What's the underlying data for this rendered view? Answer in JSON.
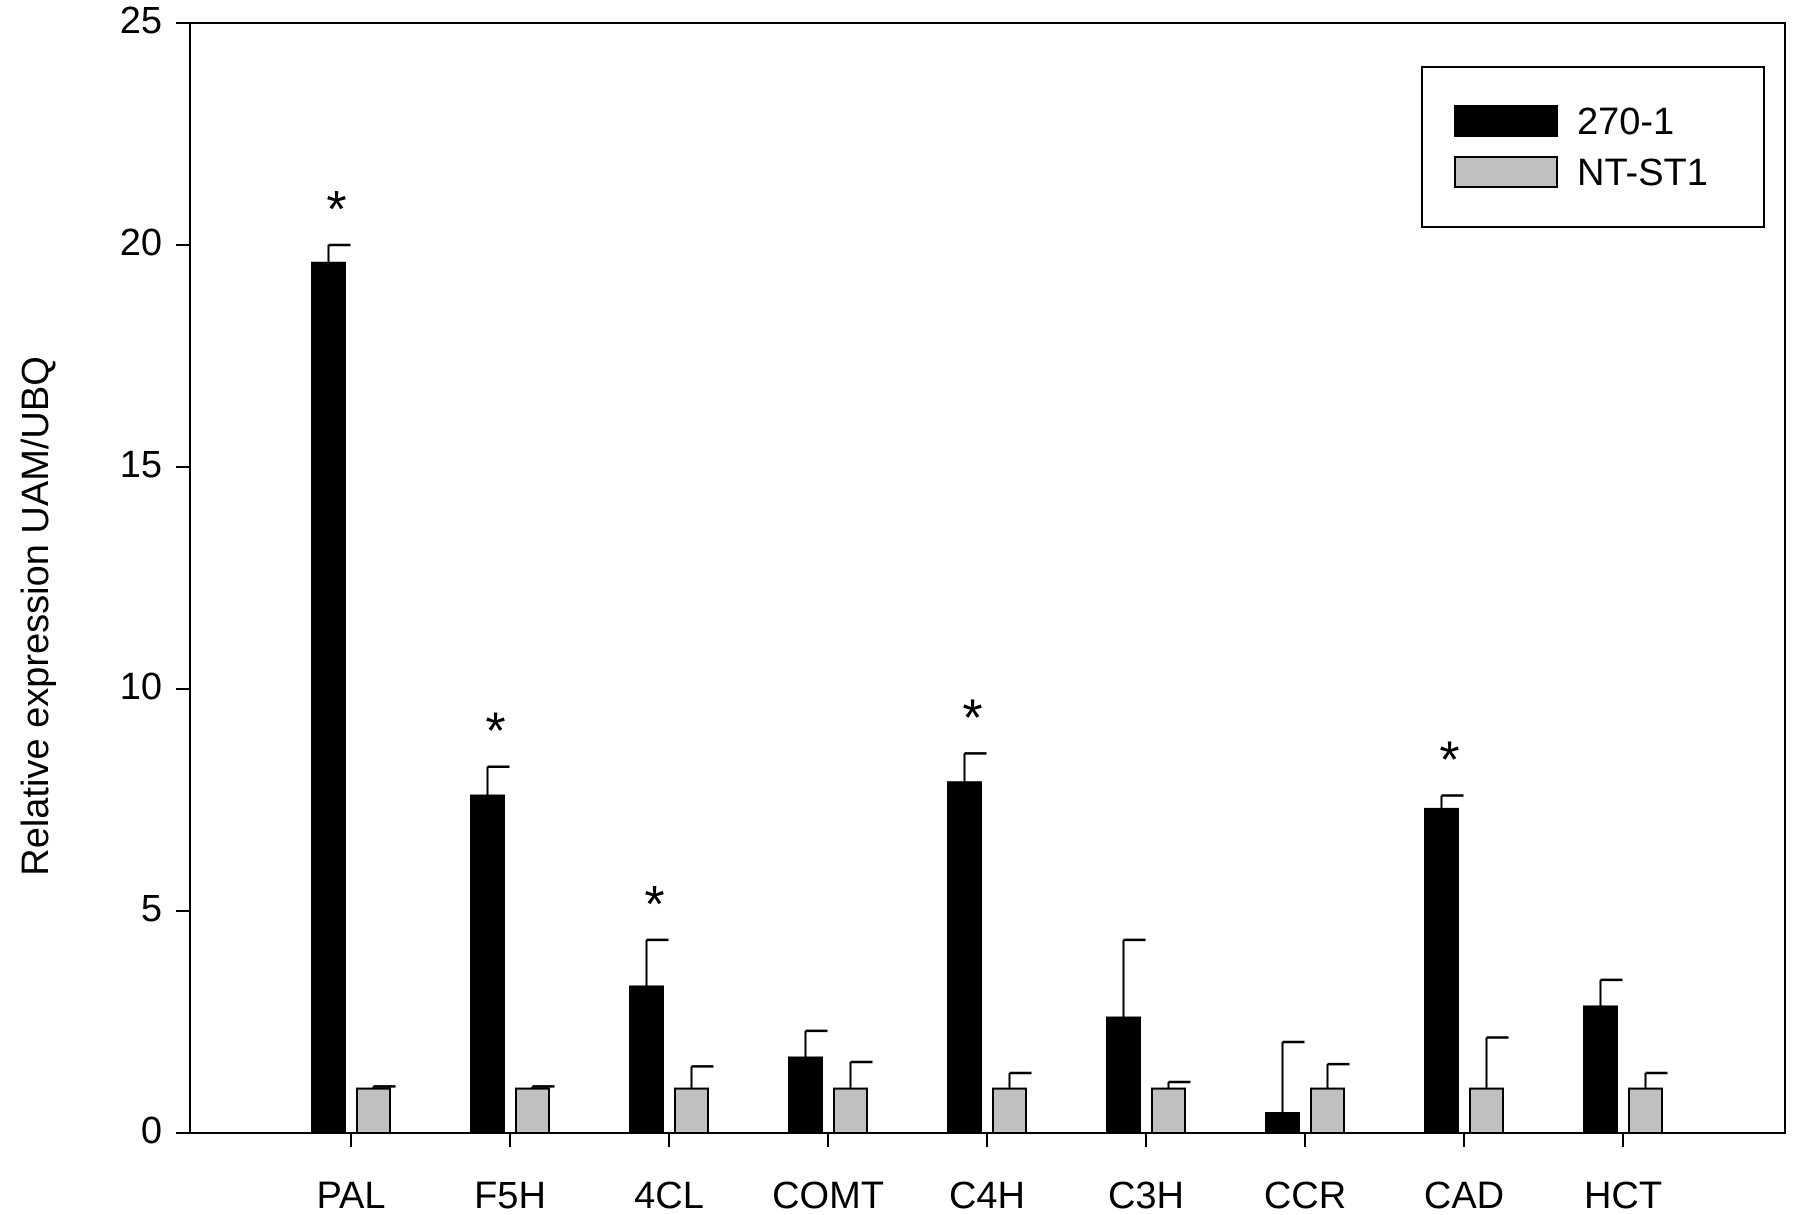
{
  "chart_data": {
    "type": "bar",
    "title": "",
    "xlabel": "",
    "ylabel": "Relative expression UAM/UBQ",
    "ylim": [
      0,
      25
    ],
    "yticks": [
      "0",
      "5",
      "10",
      "15",
      "20",
      "25"
    ],
    "grid": false,
    "legend_position": "top-right",
    "categories": [
      "PAL",
      "F5H",
      "4CL",
      "COMT",
      "C4H",
      "C3H",
      "CCR",
      "CAD",
      "HCT"
    ],
    "series": [
      {
        "name": "270-1",
        "color": "#000000",
        "values": [
          19.6,
          7.6,
          3.3,
          1.7,
          7.9,
          2.6,
          0.45,
          7.3,
          2.85
        ],
        "error": [
          0.4,
          0.65,
          1.05,
          0.6,
          0.65,
          1.75,
          1.6,
          0.3,
          0.6
        ]
      },
      {
        "name": "NT-ST1",
        "color": "#c0c0c0",
        "values": [
          1.0,
          1.0,
          1.0,
          1.0,
          1.0,
          1.0,
          1.0,
          1.0,
          1.0
        ],
        "error": [
          0.05,
          0.05,
          0.5,
          0.6,
          0.35,
          0.15,
          0.55,
          1.15,
          0.35
        ]
      }
    ],
    "significance_marker": "*",
    "significant_categories": [
      "PAL",
      "F5H",
      "4CL",
      "C4H",
      "CAD"
    ]
  }
}
